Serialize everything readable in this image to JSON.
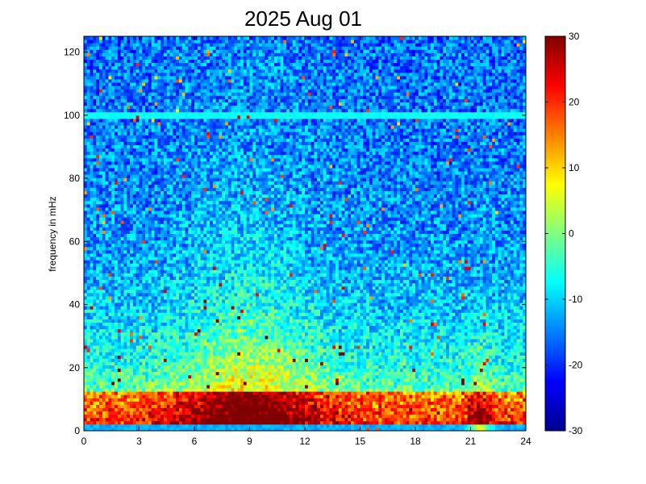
{
  "chart_data": {
    "type": "heatmap",
    "title": "2025 Aug 01",
    "xlabel": "",
    "ylabel": "frequency in mHz",
    "xlim": [
      0,
      24
    ],
    "ylim": [
      0,
      125
    ],
    "x_ticks": [
      "0",
      "3",
      "6",
      "9",
      "12",
      "15",
      "18",
      "21",
      "24"
    ],
    "y_ticks": [
      "0",
      "20",
      "40",
      "60",
      "80",
      "100",
      "120"
    ],
    "colorbar": {
      "colormap": "jet",
      "range": [
        -30,
        30
      ],
      "ticks": [
        "-30",
        "-20",
        "-10",
        "0",
        "10",
        "20",
        "30"
      ]
    },
    "features": {
      "horizontal_line_mHz": 100,
      "low_frequency_band_mHz": [
        2,
        12
      ],
      "high_power_hours": [
        4,
        14
      ],
      "burst_hour": 21.5
    }
  }
}
